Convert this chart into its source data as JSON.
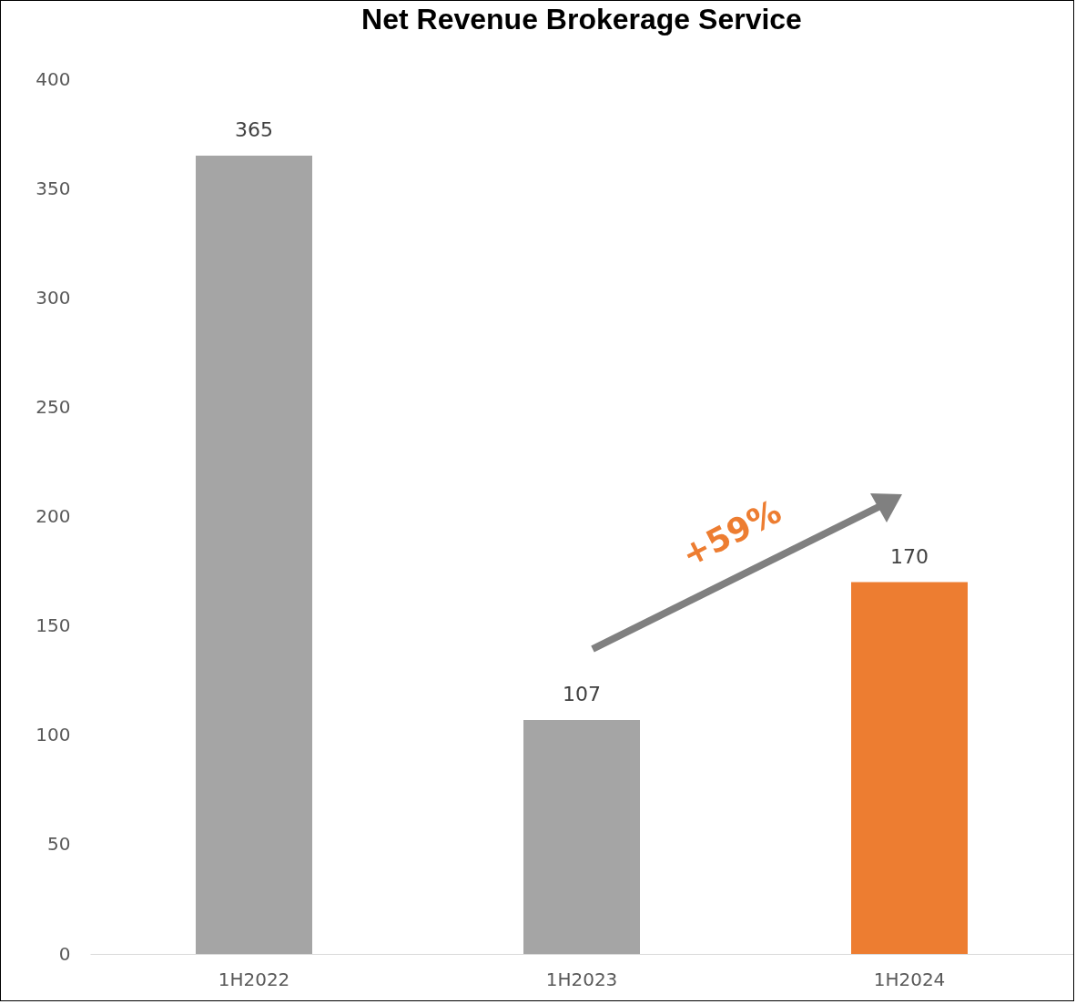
{
  "chart_data": {
    "type": "bar",
    "title": "Net Revenue Brokerage Service",
    "categories": [
      "1H2022",
      "1H2023",
      "1H2024"
    ],
    "values": [
      365,
      107,
      170
    ],
    "colors": [
      "#a5a5a5",
      "#a5a5a5",
      "#ed7d31"
    ],
    "ylim": [
      0,
      400
    ],
    "yticks": [
      0,
      50,
      100,
      150,
      200,
      250,
      300,
      350,
      400
    ],
    "grid": false,
    "data_labels": true,
    "annotations": [
      "+59%"
    ]
  }
}
